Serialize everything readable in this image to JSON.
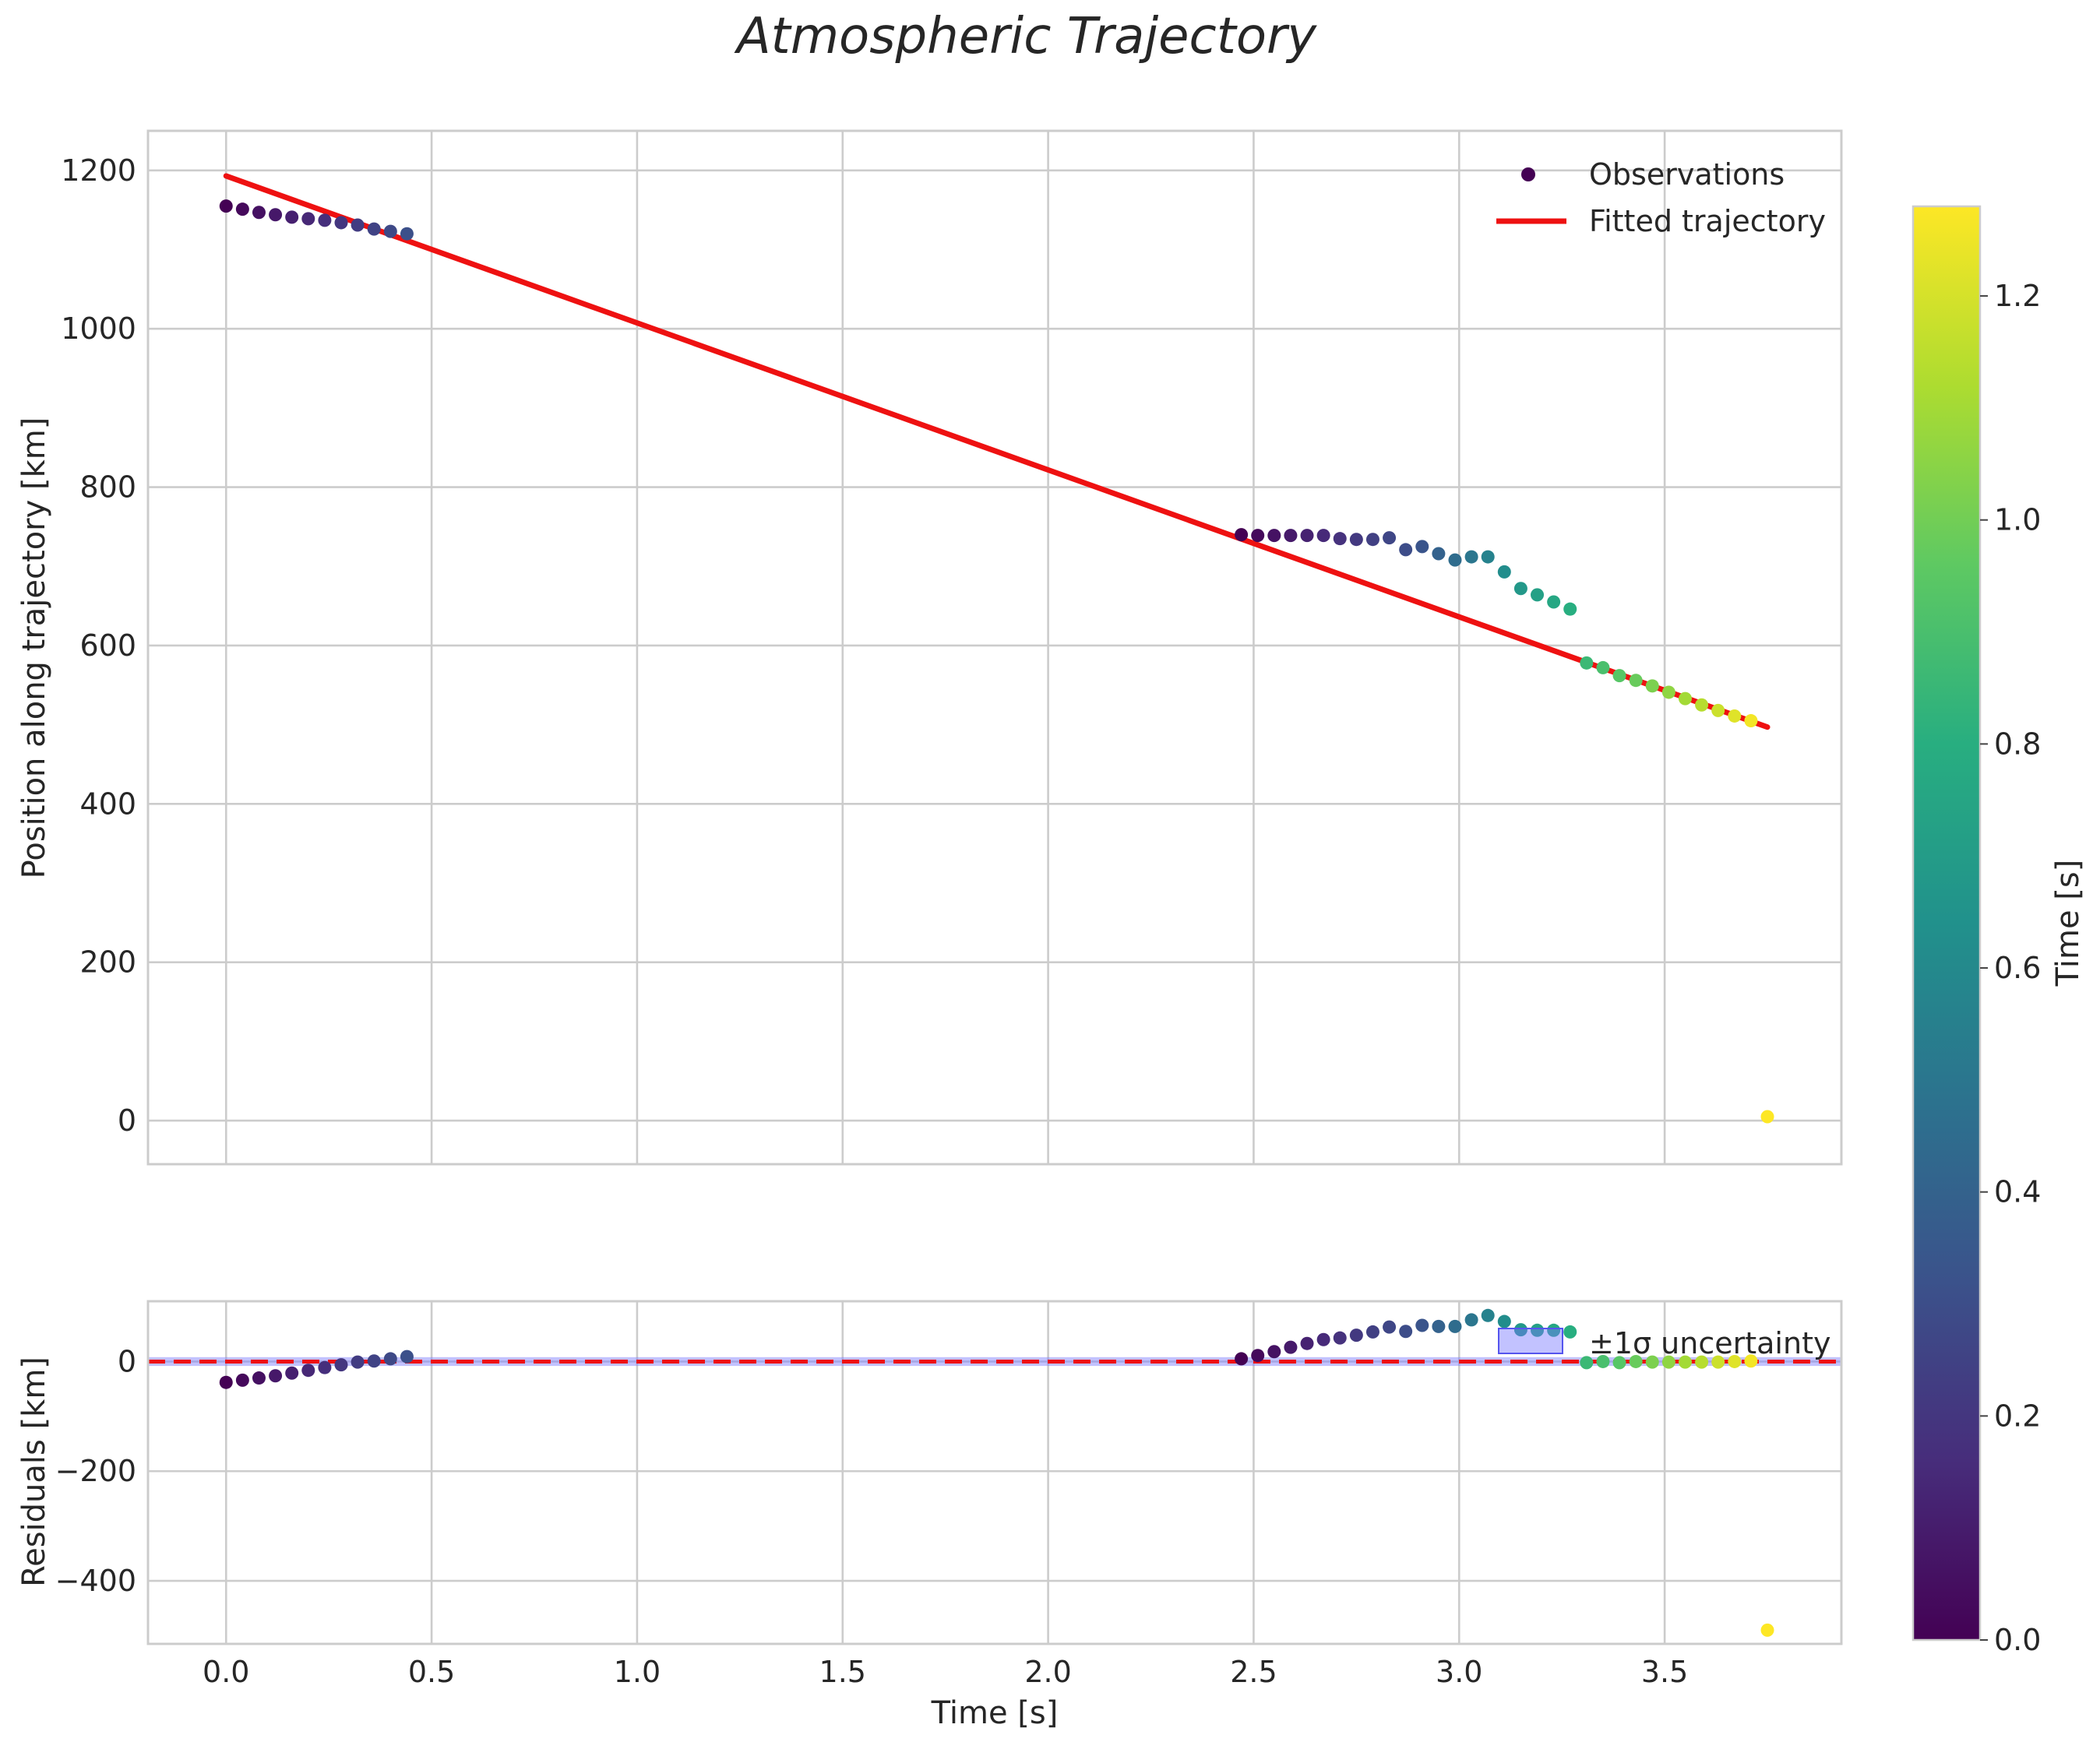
{
  "chart_data": [
    {
      "panel": "main",
      "type": "scatter",
      "title": "Atmospheric Trajectory",
      "xlabel": "",
      "ylabel": "Position along trajectory [km]",
      "xlim": [
        -0.19,
        3.93
      ],
      "ylim": [
        -55,
        1250
      ],
      "xticks": [
        0.0,
        0.5,
        1.0,
        1.5,
        2.0,
        2.5,
        3.0,
        3.5
      ],
      "yticks": [
        0,
        200,
        400,
        600,
        800,
        1000,
        1200
      ],
      "ytick_labels": [
        "0",
        "200",
        "400",
        "600",
        "800",
        "1000",
        "1200"
      ],
      "grid": true,
      "legend_position": "top-right",
      "series": [
        {
          "name": "Observations",
          "kind": "points",
          "colormap": "viridis",
          "x": [
            0.0,
            0.04,
            0.08,
            0.12,
            0.16,
            0.2,
            0.24,
            0.28,
            0.32,
            0.36,
            0.4,
            0.44,
            2.47,
            2.51,
            2.55,
            2.59,
            2.63,
            2.67,
            2.71,
            2.75,
            2.79,
            2.83,
            2.87,
            2.91,
            2.95,
            2.99,
            3.03,
            3.07,
            3.11,
            3.15,
            3.19,
            3.23,
            3.27,
            3.31,
            3.35,
            3.39,
            3.43,
            3.47,
            3.51,
            3.55,
            3.59,
            3.63,
            3.67,
            3.71,
            3.75
          ],
          "y": [
            1155,
            1151,
            1147,
            1144,
            1141,
            1139,
            1137,
            1134,
            1131,
            1126,
            1123,
            1120,
            740,
            739,
            739,
            739,
            739,
            739,
            735,
            734,
            734,
            736,
            721,
            725,
            716,
            708,
            712,
            712,
            693,
            672,
            664,
            655,
            646,
            578,
            572,
            562,
            556,
            549,
            541,
            533,
            525,
            518,
            511,
            505,
            5
          ],
          "c": [
            0.0,
            0.028,
            0.056,
            0.085,
            0.113,
            0.141,
            0.17,
            0.198,
            0.226,
            0.255,
            0.283,
            0.31,
            0.0,
            0.03,
            0.06,
            0.09,
            0.12,
            0.15,
            0.18,
            0.21,
            0.24,
            0.27,
            0.3,
            0.33,
            0.4,
            0.45,
            0.5,
            0.56,
            0.62,
            0.68,
            0.72,
            0.76,
            0.8,
            0.86,
            0.9,
            0.94,
            0.98,
            1.02,
            1.06,
            1.1,
            1.14,
            1.18,
            1.22,
            1.26,
            1.28
          ]
        },
        {
          "name": "Fitted trajectory",
          "kind": "line",
          "color": "#ee1111",
          "x": [
            0.0,
            3.75
          ],
          "y": [
            1193,
            497
          ]
        }
      ]
    },
    {
      "panel": "residuals",
      "type": "scatter",
      "title": "",
      "xlabel": "Time [s]",
      "ylabel": "Residuals [km]",
      "xlim": [
        -0.19,
        3.93
      ],
      "ylim": [
        -515,
        110
      ],
      "xticks": [
        0.0,
        0.5,
        1.0,
        1.5,
        2.0,
        2.5,
        3.0,
        3.5
      ],
      "xtick_labels": [
        "0.0",
        "0.5",
        "1.0",
        "1.5",
        "2.0",
        "2.5",
        "3.0",
        "3.5"
      ],
      "yticks": [
        0,
        -200,
        -400
      ],
      "ytick_labels": [
        "0",
        "−200",
        "−400"
      ],
      "grid": true,
      "legend_position": "top-right",
      "zero_line": {
        "y": 0,
        "color": "#ee1111",
        "style": "dashed"
      },
      "uncertainty_band": {
        "label": "±1σ uncertainty",
        "color": "#7777ff",
        "low": -8,
        "high": 8
      },
      "residual_y": [
        -38,
        -34,
        -30,
        -26,
        -21,
        -16,
        -11,
        -6,
        -1,
        1,
        5,
        9,
        5,
        11,
        18,
        26,
        33,
        40,
        43,
        48,
        54,
        63,
        55,
        66,
        64,
        64,
        76,
        84,
        73,
        58,
        57,
        57,
        54,
        -2,
        0,
        -2,
        0,
        -1,
        -1,
        -1,
        -1,
        -1,
        0,
        1,
        -490
      ]
    }
  ],
  "colorbar": {
    "label": "Time [s]",
    "colormap": "viridis",
    "range": [
      0.0,
      1.28
    ],
    "ticks": [
      0.0,
      0.2,
      0.4,
      0.6,
      0.8,
      1.0,
      1.2
    ],
    "tick_labels": [
      "0.0",
      "0.2",
      "0.4",
      "0.6",
      "0.8",
      "1.0",
      "1.2"
    ]
  },
  "colors": {
    "fit_line": "#ee1111",
    "grid": "#cccccc",
    "band": "#7777ff"
  }
}
